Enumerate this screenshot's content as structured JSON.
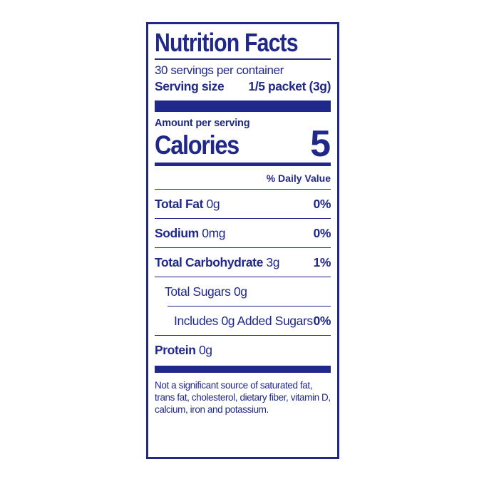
{
  "colors": {
    "accent": "#20288a",
    "label_background": "#ffffff",
    "page_background": "#ffffff"
  },
  "label": {
    "title": "Nutrition Facts",
    "servings_per_container": "30 servings per container",
    "serving_size": {
      "label": "Serving size",
      "value": "1/5 packet (3g)"
    },
    "amount_per_serving": "Amount per serving",
    "calories": {
      "label": "Calories",
      "value": "5"
    },
    "daily_value_header": "% Daily Value",
    "rows": [
      {
        "name": "Total Fat",
        "amount": "0g",
        "daily_value": "0%"
      },
      {
        "name": "Sodium",
        "amount": "0mg",
        "daily_value": "0%"
      },
      {
        "name": "Total Carbohydrate",
        "amount": "3g",
        "daily_value": "1%"
      },
      {
        "name": "Total Sugars",
        "amount": "0g",
        "daily_value": ""
      },
      {
        "name": "Includes 0g Added Sugars",
        "amount": "",
        "daily_value": "0%"
      },
      {
        "name": "Protein",
        "amount": "0g",
        "daily_value": ""
      }
    ],
    "footnote": "Not a significant source of saturated fat, trans fat, cholesterol, dietary fiber, vitamin D, calcium, iron and potassium."
  }
}
